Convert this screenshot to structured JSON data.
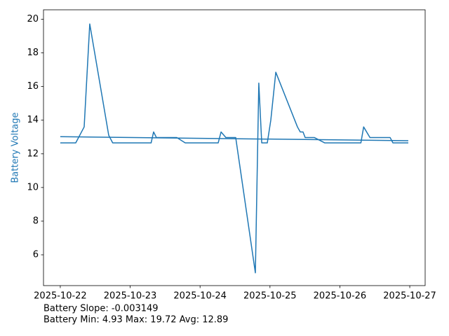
{
  "chart_data": {
    "type": "line",
    "y_label": "Battery Voltage",
    "y_label_color": "#1f77b4",
    "series": [
      {
        "color": "#1f77b4",
        "x": [
          "2025-10-22 00:00",
          "2025-10-22 05:18",
          "2025-10-22 08:12",
          "2025-10-22 10:07",
          "2025-10-22 16:38",
          "2025-10-22 18:00",
          "2025-10-23 07:11",
          "2025-10-23 08:02",
          "2025-10-23 09:00",
          "2025-10-23 16:00",
          "2025-10-23 18:54",
          "2025-10-24 06:13",
          "2025-10-24 07:12",
          "2025-10-24 08:52",
          "2025-10-24 12:14",
          "2025-10-24 18:59",
          "2025-10-24 20:10",
          "2025-10-24 21:10",
          "2025-10-24 23:05",
          "2025-10-25 00:17",
          "2025-10-25 02:00",
          "2025-10-25 09:26",
          "2025-10-25 10:24",
          "2025-10-25 11:21",
          "2025-10-25 12:05",
          "2025-10-25 15:13",
          "2025-10-25 18:50",
          "2025-10-26 07:13",
          "2025-10-26 08:10",
          "2025-10-26 10:20",
          "2025-10-26 17:15",
          "2025-10-26 18:13",
          "2025-10-26 23:30"
        ],
        "values": [
          12.65,
          12.65,
          13.6,
          19.72,
          13.1,
          12.65,
          12.65,
          13.3,
          12.97,
          12.97,
          12.65,
          12.65,
          13.3,
          12.97,
          12.97,
          4.93,
          16.2,
          12.65,
          12.65,
          14.0,
          16.85,
          13.6,
          13.3,
          13.3,
          12.97,
          12.97,
          12.65,
          12.65,
          13.6,
          12.97,
          12.97,
          12.65,
          12.65
        ]
      },
      {
        "color": "#1f77b4",
        "x": [
          "2025-10-22 00:00",
          "2025-10-26 23:30"
        ],
        "values": [
          13.02,
          12.78
        ]
      }
    ],
    "xlim": [
      "2025-10-21 18:14",
      "2025-10-27 05:17"
    ],
    "xticks": [
      "2025-10-22",
      "2025-10-23",
      "2025-10-24",
      "2025-10-25",
      "2025-10-26",
      "2025-10-27"
    ],
    "ylim": [
      4.17,
      20.56
    ],
    "yticks": [
      6,
      8,
      10,
      12,
      14,
      16,
      18,
      20
    ],
    "footer_lines": [
      "Battery Slope: -0.003149",
      "Battery Min: 4.93 Max: 19.72 Avg: 12.89"
    ]
  }
}
